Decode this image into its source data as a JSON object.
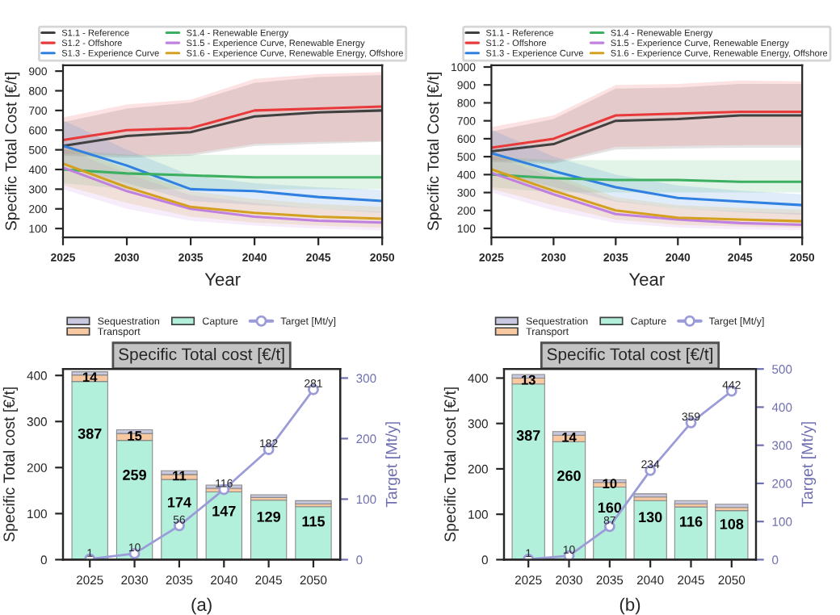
{
  "chart_data": [
    {
      "type": "line",
      "xlabel": "Year",
      "ylabel": "Specific Total Cost [€/t]",
      "x": [
        2025,
        2030,
        2035,
        2040,
        2045,
        2050
      ],
      "xlim": [
        2025,
        2050
      ],
      "xticks": [
        2025,
        2030,
        2035,
        2040,
        2045,
        2050
      ],
      "ylim": [
        55,
        930
      ],
      "yticks": [
        100,
        200,
        300,
        400,
        500,
        600,
        700,
        800,
        900
      ],
      "legend": "top",
      "grid": false,
      "series": [
        {
          "name": "S1.1 - Reference",
          "color": "#404040",
          "values": [
            520,
            570,
            590,
            670,
            690,
            700
          ],
          "lower": [
            470,
            460,
            470,
            520,
            530,
            540
          ],
          "upper": [
            640,
            710,
            740,
            840,
            870,
            880
          ]
        },
        {
          "name": "S1.2 - Offshore",
          "color": "#e83a3a",
          "values": [
            550,
            600,
            610,
            700,
            710,
            720
          ],
          "lower": [
            480,
            470,
            480,
            530,
            540,
            545
          ],
          "upper": [
            665,
            730,
            755,
            860,
            885,
            895
          ]
        },
        {
          "name": "S1.3 - Experience Curve",
          "color": "#2f80e0",
          "values": [
            520,
            420,
            300,
            290,
            260,
            240
          ],
          "lower": [
            420,
            330,
            240,
            220,
            200,
            180
          ],
          "upper": [
            650,
            500,
            370,
            330,
            310,
            295
          ]
        },
        {
          "name": "S1.4 - Renewable Energy",
          "color": "#3cb060",
          "values": [
            400,
            380,
            370,
            360,
            360,
            360
          ],
          "lower": [
            330,
            300,
            300,
            300,
            300,
            300
          ],
          "upper": [
            500,
            475,
            475,
            475,
            475,
            475
          ]
        },
        {
          "name": "S1.5 - Experience Curve, Renewable Energy",
          "color": "#c080e0",
          "values": [
            410,
            290,
            200,
            160,
            140,
            130
          ],
          "lower": [
            300,
            200,
            140,
            115,
            100,
            90
          ],
          "upper": [
            510,
            380,
            270,
            230,
            200,
            185
          ]
        },
        {
          "name": "S1.6 - Experience Curve, Renewable Energy, Offshore",
          "color": "#d4a020",
          "values": [
            430,
            310,
            210,
            180,
            160,
            150
          ],
          "lower": [
            320,
            230,
            160,
            130,
            115,
            105
          ],
          "upper": [
            530,
            400,
            290,
            250,
            225,
            210
          ]
        }
      ]
    },
    {
      "type": "line",
      "xlabel": "Year",
      "ylabel": "Specific Total Cost [€/t]",
      "x": [
        2025,
        2030,
        2035,
        2040,
        2045,
        2050
      ],
      "xlim": [
        2025,
        2050
      ],
      "xticks": [
        2025,
        2030,
        2035,
        2040,
        2045,
        2050
      ],
      "ylim": [
        50,
        1010
      ],
      "yticks": [
        100,
        200,
        300,
        400,
        500,
        600,
        700,
        800,
        900,
        1000
      ],
      "legend": "top",
      "grid": false,
      "series": [
        {
          "name": "S1.1 - Reference",
          "color": "#404040",
          "values": [
            530,
            570,
            700,
            710,
            730,
            730
          ],
          "lower": [
            470,
            460,
            540,
            545,
            550,
            550
          ],
          "upper": [
            640,
            710,
            880,
            885,
            905,
            905
          ]
        },
        {
          "name": "S1.2 - Offshore",
          "color": "#e83a3a",
          "values": [
            550,
            600,
            730,
            740,
            750,
            750
          ],
          "lower": [
            480,
            470,
            555,
            560,
            565,
            565
          ],
          "upper": [
            665,
            730,
            900,
            905,
            925,
            920
          ]
        },
        {
          "name": "S1.3 - Experience Curve",
          "color": "#2f80e0",
          "values": [
            520,
            420,
            330,
            270,
            250,
            230
          ],
          "lower": [
            420,
            330,
            250,
            210,
            190,
            175
          ],
          "upper": [
            650,
            500,
            400,
            340,
            310,
            290
          ]
        },
        {
          "name": "S1.4 - Renewable Energy",
          "color": "#3cb060",
          "values": [
            400,
            380,
            370,
            370,
            360,
            360
          ],
          "lower": [
            330,
            300,
            300,
            300,
            300,
            300
          ],
          "upper": [
            500,
            480,
            480,
            480,
            480,
            480
          ]
        },
        {
          "name": "S1.5 - Experience Curve, Renewable Energy",
          "color": "#c080e0",
          "values": [
            410,
            290,
            180,
            150,
            130,
            120
          ],
          "lower": [
            300,
            200,
            130,
            105,
            95,
            90
          ],
          "upper": [
            510,
            380,
            255,
            210,
            195,
            185
          ]
        },
        {
          "name": "S1.6 - Experience Curve, Renewable Energy, Offshore",
          "color": "#d4a020",
          "values": [
            430,
            310,
            200,
            160,
            150,
            140
          ],
          "lower": [
            320,
            230,
            150,
            120,
            110,
            105
          ],
          "upper": [
            530,
            400,
            275,
            230,
            215,
            205
          ]
        }
      ]
    },
    {
      "type": "bar",
      "stacked": true,
      "title": "Specific Total cost [€/t]",
      "ylabel": "Specific Total cost [€/t]",
      "y2label": "Target [Mt/y]",
      "categories": [
        "2025",
        "2030",
        "2035",
        "2040",
        "2045",
        "2050"
      ],
      "ylim": [
        0,
        414
      ],
      "yticks": [
        0,
        100,
        200,
        300,
        400
      ],
      "y2lim": [
        0,
        315
      ],
      "y2ticks": [
        0,
        100,
        200,
        300
      ],
      "legend": "top",
      "annotations": [
        "(a)"
      ],
      "series": [
        {
          "name": "Capture",
          "color": "#b3f0dc",
          "values": [
            387,
            259,
            174,
            147,
            129,
            115
          ],
          "value_labels": [
            "387",
            "259",
            "174",
            "147",
            "129",
            "115"
          ]
        },
        {
          "name": "Transport",
          "color": "#f8c8a0",
          "values": [
            14,
            15,
            11,
            8,
            6,
            6
          ],
          "value_labels": [
            "14",
            "15",
            "11",
            null,
            null,
            null
          ]
        },
        {
          "name": "Sequestration",
          "color": "#c8c8e0",
          "values": [
            7,
            8,
            8,
            7,
            6,
            7
          ]
        },
        {
          "name": "Target [Mt/y]",
          "type": "line",
          "axis": "y2",
          "marker": "circle",
          "color": "#9b9bd8",
          "values": [
            1,
            10,
            56,
            116,
            182,
            281
          ],
          "value_labels": [
            "1",
            "10",
            "56",
            "116",
            "182",
            "281"
          ]
        }
      ]
    },
    {
      "type": "bar",
      "stacked": true,
      "title": "Specific Total cost [€/t]",
      "ylabel": "Specific Total cost [€/t]",
      "y2label": "Target [Mt/y]",
      "categories": [
        "2025",
        "2030",
        "2035",
        "2040",
        "2045",
        "2050"
      ],
      "ylim": [
        0,
        420
      ],
      "yticks": [
        0,
        100,
        200,
        300,
        400
      ],
      "y2lim": [
        0,
        500
      ],
      "y2ticks": [
        0,
        100,
        200,
        300,
        400,
        500
      ],
      "legend": "top",
      "annotations": [
        "(b)"
      ],
      "series": [
        {
          "name": "Capture",
          "color": "#b3f0dc",
          "values": [
            387,
            260,
            160,
            130,
            116,
            108
          ],
          "value_labels": [
            "387",
            "260",
            "160",
            "130",
            "116",
            "108"
          ]
        },
        {
          "name": "Transport",
          "color": "#f8c8a0",
          "values": [
            13,
            14,
            10,
            8,
            7,
            7
          ],
          "value_labels": [
            "13",
            "14",
            "10",
            null,
            null,
            null
          ]
        },
        {
          "name": "Sequestration",
          "color": "#c8c8e0",
          "values": [
            8,
            8,
            6,
            7,
            7,
            7
          ]
        },
        {
          "name": "Target [Mt/y]",
          "type": "line",
          "axis": "y2",
          "marker": "circle",
          "color": "#9b9bd8",
          "values": [
            1,
            10,
            87,
            234,
            359,
            442
          ],
          "value_labels": [
            "1",
            "10",
            "87",
            "234",
            "359",
            "442"
          ]
        }
      ]
    }
  ]
}
